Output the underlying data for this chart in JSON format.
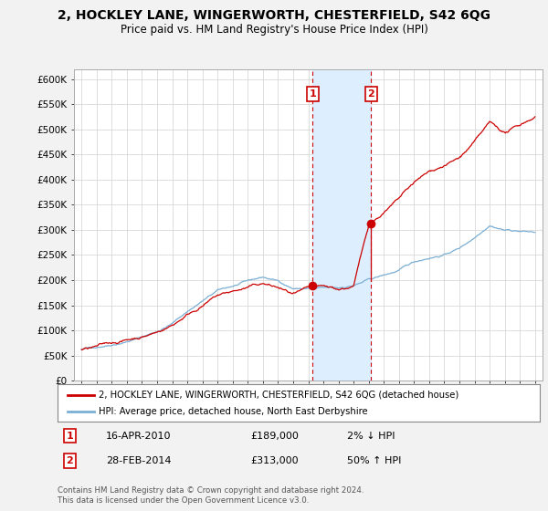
{
  "title": "2, HOCKLEY LANE, WINGERWORTH, CHESTERFIELD, S42 6QG",
  "subtitle": "Price paid vs. HM Land Registry's House Price Index (HPI)",
  "ylabel_ticks": [
    "£0",
    "£50K",
    "£100K",
    "£150K",
    "£200K",
    "£250K",
    "£300K",
    "£350K",
    "£400K",
    "£450K",
    "£500K",
    "£550K",
    "£600K"
  ],
  "ytick_values": [
    0,
    50000,
    100000,
    150000,
    200000,
    250000,
    300000,
    350000,
    400000,
    450000,
    500000,
    550000,
    600000
  ],
  "xlim": [
    1994.5,
    2025.5
  ],
  "ylim": [
    0,
    620000
  ],
  "sale1_year": 2010.29,
  "sale1_price": 189000,
  "sale1_label": "1",
  "sale1_date": "16-APR-2010",
  "sale1_pct": "2% ↓ HPI",
  "sale2_year": 2014.16,
  "sale2_price": 313000,
  "sale2_label": "2",
  "sale2_date": "28-FEB-2014",
  "sale2_pct": "50% ↑ HPI",
  "line_color_property": "#cc0000",
  "line_color_hpi": "#7bafd4",
  "shade_color": "#ddeeff",
  "vline_color": "#cc0000",
  "marker_box_color": "#cc0000",
  "legend_line1": "2, HOCKLEY LANE, WINGERWORTH, CHESTERFIELD, S42 6QG (detached house)",
  "legend_line2": "HPI: Average price, detached house, North East Derbyshire",
  "footnote": "Contains HM Land Registry data © Crown copyright and database right 2024.\nThis data is licensed under the Open Government Licence v3.0.",
  "background_color": "#f2f2f2",
  "plot_bg_color": "#ffffff"
}
